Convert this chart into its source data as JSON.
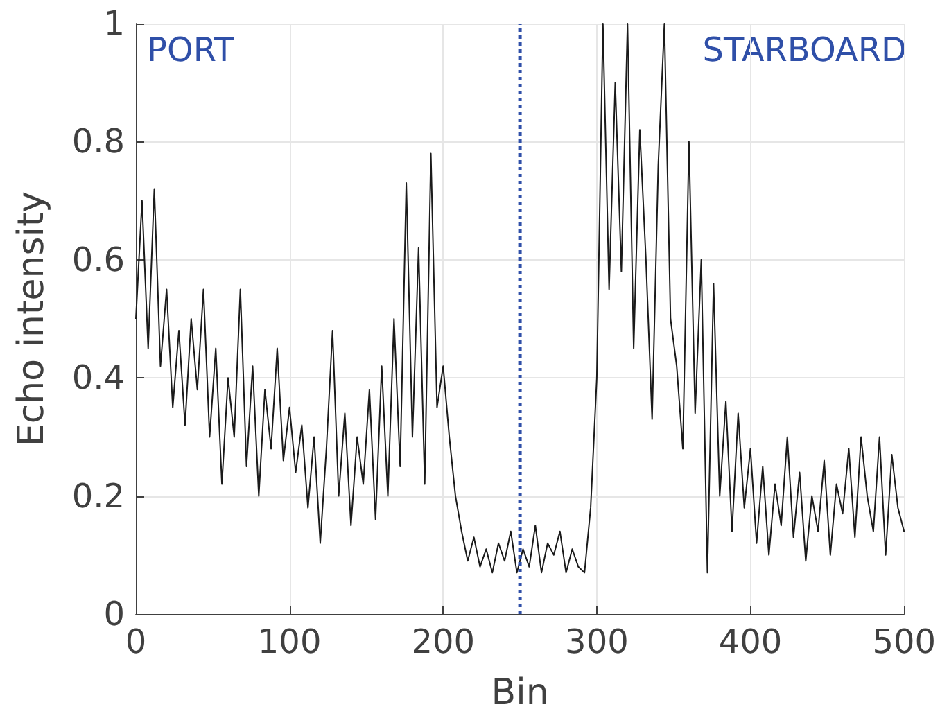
{
  "chart_data": {
    "type": "line",
    "xlabel": "Bin",
    "ylabel": "Echo intensity",
    "x": [
      0,
      4,
      8,
      12,
      16,
      20,
      24,
      28,
      32,
      36,
      40,
      44,
      48,
      52,
      56,
      60,
      64,
      68,
      72,
      76,
      80,
      84,
      88,
      92,
      96,
      100,
      104,
      108,
      112,
      116,
      120,
      124,
      128,
      132,
      136,
      140,
      144,
      148,
      152,
      156,
      160,
      164,
      168,
      172,
      176,
      180,
      184,
      188,
      192,
      196,
      200,
      204,
      208,
      212,
      216,
      220,
      224,
      228,
      232,
      236,
      240,
      244,
      248,
      252,
      256,
      260,
      264,
      268,
      272,
      276,
      280,
      284,
      288,
      292,
      296,
      300,
      304,
      308,
      312,
      316,
      320,
      324,
      328,
      332,
      336,
      340,
      344,
      348,
      352,
      356,
      360,
      364,
      368,
      372,
      376,
      380,
      384,
      388,
      392,
      396,
      400,
      404,
      408,
      412,
      416,
      420,
      424,
      428,
      432,
      436,
      440,
      444,
      448,
      452,
      456,
      460,
      464,
      468,
      472,
      476,
      480,
      484,
      488,
      492,
      496,
      500
    ],
    "series": [
      {
        "color": "#1a1a1a",
        "values": [
          0.5,
          0.7,
          0.45,
          0.72,
          0.42,
          0.55,
          0.35,
          0.48,
          0.32,
          0.5,
          0.38,
          0.55,
          0.3,
          0.45,
          0.22,
          0.4,
          0.3,
          0.55,
          0.25,
          0.42,
          0.2,
          0.38,
          0.28,
          0.45,
          0.26,
          0.35,
          0.24,
          0.32,
          0.18,
          0.3,
          0.12,
          0.28,
          0.48,
          0.2,
          0.34,
          0.15,
          0.3,
          0.22,
          0.38,
          0.16,
          0.42,
          0.2,
          0.5,
          0.25,
          0.73,
          0.3,
          0.62,
          0.22,
          0.78,
          0.35,
          0.42,
          0.3,
          0.2,
          0.14,
          0.09,
          0.13,
          0.08,
          0.11,
          0.07,
          0.12,
          0.09,
          0.14,
          0.07,
          0.11,
          0.08,
          0.15,
          0.07,
          0.12,
          0.1,
          0.14,
          0.07,
          0.11,
          0.08,
          0.07,
          0.18,
          0.4,
          1.0,
          0.55,
          0.9,
          0.58,
          1.0,
          0.45,
          0.82,
          0.6,
          0.33,
          0.76,
          1.0,
          0.5,
          0.42,
          0.28,
          0.8,
          0.34,
          0.6,
          0.07,
          0.56,
          0.2,
          0.36,
          0.14,
          0.34,
          0.18,
          0.28,
          0.12,
          0.25,
          0.1,
          0.22,
          0.15,
          0.3,
          0.13,
          0.24,
          0.09,
          0.2,
          0.14,
          0.26,
          0.1,
          0.22,
          0.17,
          0.28,
          0.13,
          0.3,
          0.2,
          0.14,
          0.3,
          0.1,
          0.27,
          0.18,
          0.14
        ]
      }
    ],
    "xlim": [
      0,
      500
    ],
    "xticks": [
      0,
      100,
      200,
      300,
      400,
      500
    ],
    "ylim": [
      0,
      1
    ],
    "yticks": [
      0,
      0.2,
      0.4,
      0.6,
      0.8,
      1
    ],
    "grid": true,
    "marker": "none",
    "line_style": "solid",
    "ref_lines": [
      {
        "axis": "x",
        "value": 250,
        "color": "#2f4fa8",
        "line_style": "dotted"
      }
    ],
    "annotations": [
      "PORT",
      "STARBOARD"
    ]
  }
}
